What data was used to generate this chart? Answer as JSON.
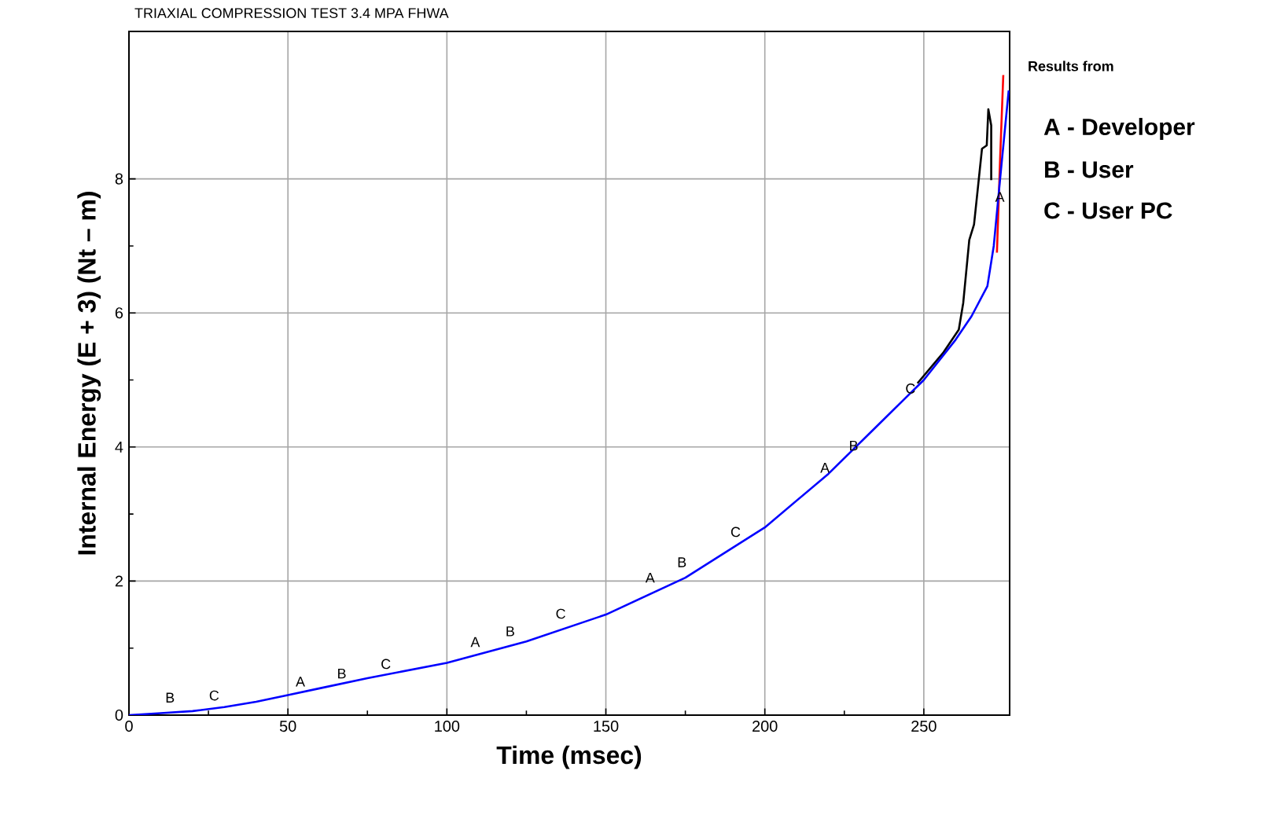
{
  "chart_data": {
    "type": "line",
    "title": "TRIAXIAL COMPRESSION TEST 3.4 MPA FHWA",
    "xlabel": "Time (msec)",
    "ylabel": "Internal Energy (E + 3)  (Nt – m)",
    "series": [
      {
        "color": "#000000",
        "x": [
          248,
          256,
          261,
          262.4,
          264.3,
          265.8,
          268.3,
          269.8,
          270.3,
          271.2,
          271.2
        ],
        "values": [
          4.95,
          5.4,
          5.75,
          6.15,
          7.09,
          7.32,
          8.45,
          8.5,
          9.04,
          8.8,
          7.98
        ]
      },
      {
        "color": "#ff0000",
        "x": [
          273,
          274,
          275
        ],
        "values": [
          6.9,
          8.3,
          9.55
        ]
      },
      {
        "color": "#0000ff",
        "x": [
          0,
          10,
          20,
          30,
          40,
          50,
          60,
          75,
          100,
          125,
          150,
          175,
          200,
          220,
          235,
          250,
          260,
          265,
          270,
          272,
          274,
          276.7
        ],
        "values": [
          0,
          0.03,
          0.06,
          0.12,
          0.2,
          0.3,
          0.4,
          0.55,
          0.78,
          1.1,
          1.5,
          2.05,
          2.8,
          3.6,
          4.3,
          5.0,
          5.6,
          5.95,
          6.4,
          7.0,
          8.0,
          9.32
        ]
      }
    ],
    "xlim": [
      0,
      277
    ],
    "xticks": [
      0,
      50,
      100,
      150,
      200,
      250
    ],
    "ylim": [
      0,
      10.2
    ],
    "yticks": [
      0,
      2,
      4,
      6,
      8
    ],
    "grid": true,
    "annotations": [
      "Results from",
      "A  -  Developer",
      "B  -  User",
      "C  -  User PC",
      {
        "text": "B",
        "x": 14,
        "y": 0.16
      },
      {
        "text": "C",
        "x": 28,
        "y": 0.19
      },
      {
        "text": "A",
        "x": 55,
        "y": 0.4
      },
      {
        "text": "B",
        "x": 68,
        "y": 0.52
      },
      {
        "text": "C",
        "x": 82,
        "y": 0.66
      },
      {
        "text": "A",
        "x": 110,
        "y": 0.99
      },
      {
        "text": "B",
        "x": 121,
        "y": 1.15
      },
      {
        "text": "C",
        "x": 137,
        "y": 1.41
      },
      {
        "text": "A",
        "x": 165,
        "y": 1.95
      },
      {
        "text": "B",
        "x": 175,
        "y": 2.18
      },
      {
        "text": "C",
        "x": 192,
        "y": 2.63
      },
      {
        "text": "A",
        "x": 220,
        "y": 3.59
      },
      {
        "text": "B",
        "x": 229,
        "y": 3.92
      },
      {
        "text": "C",
        "x": 247,
        "y": 4.77
      },
      {
        "text": "A",
        "x": 275,
        "y": 7.63
      }
    ]
  }
}
